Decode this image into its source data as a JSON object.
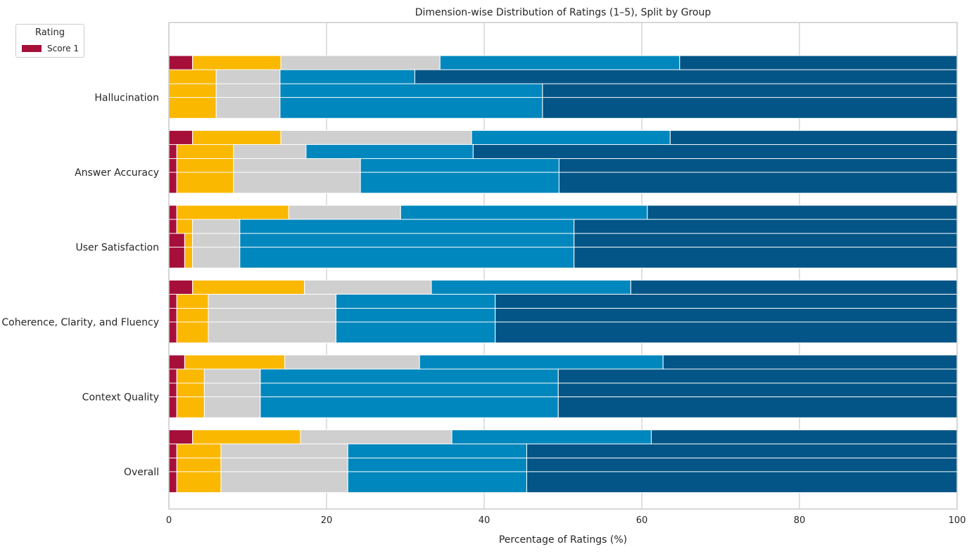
{
  "chart_data": {
    "type": "bar",
    "orientation": "horizontal",
    "stacked": true,
    "title": "Dimension-wise Distribution of Ratings (1–5), Split by Group",
    "xlabel": "Percentage of Ratings (%)",
    "ylabel": "",
    "xlim": [
      0,
      100
    ],
    "xticks": [
      "0",
      "20",
      "40",
      "60",
      "80",
      "100"
    ],
    "grid": true,
    "legend": {
      "title": "Rating",
      "placement": "top-left",
      "entries": [
        "Score 1"
      ]
    },
    "score_colors": [
      "#a50f3a",
      "#fbb800",
      "#cfcfcf",
      "#0087bd",
      "#025586"
    ],
    "categories": [
      "Hallucination",
      "Answer Accuracy",
      "User Satisfaction",
      "Coherence, Clarity, and Fluency",
      "Context Quality",
      "Overall"
    ],
    "groups": [
      {
        "category": "Hallucination",
        "bars": [
          [
            3.0,
            11.2,
            20.2,
            30.4,
            35.2
          ],
          [
            0.0,
            6.0,
            8.1,
            17.1,
            68.8
          ],
          [
            0.0,
            6.0,
            8.1,
            33.3,
            52.6
          ],
          [
            0.0,
            6.0,
            8.1,
            33.3,
            52.6
          ]
        ]
      },
      {
        "category": "Answer Accuracy",
        "bars": [
          [
            3.0,
            11.2,
            24.2,
            25.2,
            36.4
          ],
          [
            1.0,
            7.2,
            9.2,
            21.2,
            61.4
          ],
          [
            1.0,
            7.2,
            16.1,
            25.2,
            50.5
          ],
          [
            1.0,
            7.2,
            16.1,
            25.2,
            50.5
          ]
        ]
      },
      {
        "category": "User Satisfaction",
        "bars": [
          [
            1.0,
            14.2,
            14.2,
            31.3,
            39.3
          ],
          [
            1.0,
            2.0,
            6.0,
            42.4,
            48.6
          ],
          [
            2.0,
            1.0,
            6.0,
            42.4,
            48.6
          ],
          [
            2.0,
            1.0,
            6.0,
            42.4,
            48.6
          ]
        ]
      },
      {
        "category": "Coherence, Clarity, and Fluency",
        "bars": [
          [
            3.0,
            14.2,
            16.1,
            25.3,
            41.4
          ],
          [
            1.0,
            4.0,
            16.2,
            20.2,
            58.6
          ],
          [
            1.0,
            4.0,
            16.2,
            20.2,
            58.6
          ],
          [
            1.0,
            4.0,
            16.2,
            20.2,
            58.6
          ]
        ]
      },
      {
        "category": "Context Quality",
        "bars": [
          [
            2.0,
            12.7,
            17.1,
            30.9,
            37.3
          ],
          [
            1.0,
            3.5,
            7.1,
            37.8,
            50.6
          ],
          [
            1.0,
            3.5,
            7.1,
            37.8,
            50.6
          ],
          [
            1.0,
            3.5,
            7.1,
            37.8,
            50.6
          ]
        ]
      },
      {
        "category": "Overall",
        "bars": [
          [
            3.0,
            13.7,
            19.2,
            25.3,
            38.8
          ],
          [
            1.0,
            5.6,
            16.1,
            22.7,
            54.6
          ],
          [
            1.0,
            5.6,
            16.1,
            22.7,
            54.6
          ],
          [
            1.0,
            5.6,
            16.1,
            22.7,
            54.6
          ]
        ]
      }
    ]
  }
}
